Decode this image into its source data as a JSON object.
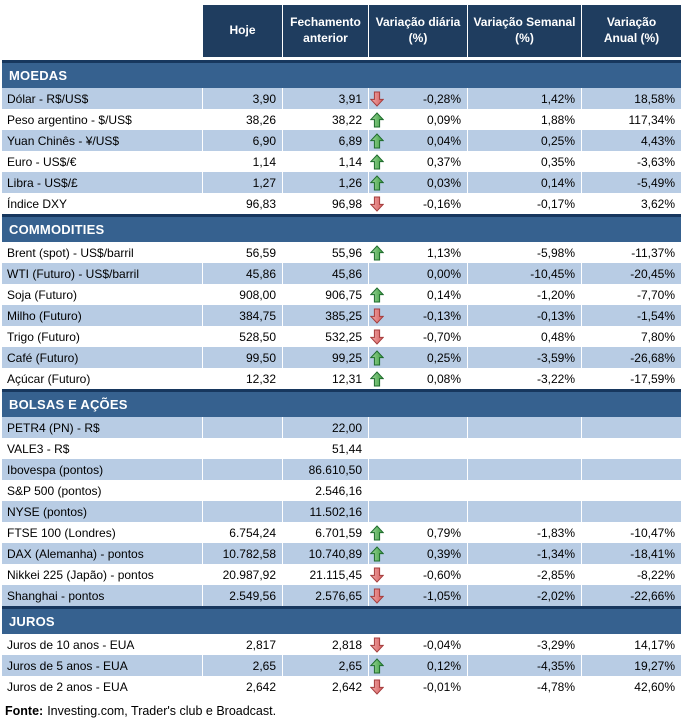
{
  "colors": {
    "header_bg": "#1F3D5F",
    "section_bg": "#36618F",
    "section_border": "#17375E",
    "stripe": "#B8CCE4",
    "arrow_up": "#46A546",
    "arrow_down": "#D45B5B"
  },
  "chart_data": {
    "type": "table",
    "columns": [
      "Hoje",
      "Fechamento\nanterior",
      "Variação diária\n(%)",
      "Variação Semanal\n(%)",
      "Variação\nAnual (%)"
    ],
    "sections": [
      {
        "title": "MOEDAS",
        "rows": [
          {
            "label": "Dólar - R$/US$",
            "today": "3,90",
            "previous": "3,91",
            "arrow": "down",
            "daily": "-0,28%",
            "weekly": "1,42%",
            "annual": "18,58%"
          },
          {
            "label": "Peso argentino - $/US$",
            "today": "38,26",
            "previous": "38,22",
            "arrow": "up",
            "daily": "0,09%",
            "weekly": "1,88%",
            "annual": "117,34%"
          },
          {
            "label": "Yuan Chinês - ¥/US$",
            "today": "6,90",
            "previous": "6,89",
            "arrow": "up",
            "daily": "0,04%",
            "weekly": "0,25%",
            "annual": "4,43%"
          },
          {
            "label": "Euro - US$/€",
            "today": "1,14",
            "previous": "1,14",
            "arrow": "up",
            "daily": "0,37%",
            "weekly": "0,35%",
            "annual": "-3,63%"
          },
          {
            "label": "Libra - US$/£",
            "today": "1,27",
            "previous": "1,26",
            "arrow": "up",
            "daily": "0,03%",
            "weekly": "0,14%",
            "annual": "-5,49%"
          },
          {
            "label": "Índice DXY",
            "today": "96,83",
            "previous": "96,98",
            "arrow": "down",
            "daily": "-0,16%",
            "weekly": "-0,17%",
            "annual": "3,62%"
          }
        ]
      },
      {
        "title": "COMMODITIES",
        "rows": [
          {
            "label": "Brent (spot) - US$/barril",
            "today": "56,59",
            "previous": "55,96",
            "arrow": "up",
            "daily": "1,13%",
            "weekly": "-5,98%",
            "annual": "-11,37%"
          },
          {
            "label": "WTI (Futuro) - US$/barril",
            "today": "45,86",
            "previous": "45,86",
            "arrow": "",
            "daily": "0,00%",
            "weekly": "-10,45%",
            "annual": "-20,45%"
          },
          {
            "label": "Soja (Futuro)",
            "today": "908,00",
            "previous": "906,75",
            "arrow": "up",
            "daily": "0,14%",
            "weekly": "-1,20%",
            "annual": "-7,70%"
          },
          {
            "label": "Milho (Futuro)",
            "today": "384,75",
            "previous": "385,25",
            "arrow": "down",
            "daily": "-0,13%",
            "weekly": "-0,13%",
            "annual": "-1,54%"
          },
          {
            "label": "Trigo (Futuro)",
            "today": "528,50",
            "previous": "532,25",
            "arrow": "down",
            "daily": "-0,70%",
            "weekly": "0,48%",
            "annual": "7,80%"
          },
          {
            "label": "Café (Futuro)",
            "today": "99,50",
            "previous": "99,25",
            "arrow": "up",
            "daily": "0,25%",
            "weekly": "-3,59%",
            "annual": "-26,68%"
          },
          {
            "label": "Açúcar (Futuro)",
            "today": "12,32",
            "previous": "12,31",
            "arrow": "up",
            "daily": "0,08%",
            "weekly": "-3,22%",
            "annual": "-17,59%"
          }
        ]
      },
      {
        "title": "BOLSAS E AÇÕES",
        "rows": [
          {
            "label": "PETR4 (PN) - R$",
            "today": "",
            "previous": "22,00",
            "arrow": "",
            "daily": "",
            "weekly": "",
            "annual": ""
          },
          {
            "label": "VALE3 - R$",
            "today": "",
            "previous": "51,44",
            "arrow": "",
            "daily": "",
            "weekly": "",
            "annual": ""
          },
          {
            "label": "Ibovespa (pontos)",
            "today": "",
            "previous": "86.610,50",
            "arrow": "",
            "daily": "",
            "weekly": "",
            "annual": ""
          },
          {
            "label": "S&P 500 (pontos)",
            "today": "",
            "previous": "2.546,16",
            "arrow": "",
            "daily": "",
            "weekly": "",
            "annual": ""
          },
          {
            "label": "NYSE (pontos)",
            "today": "",
            "previous": "11.502,16",
            "arrow": "",
            "daily": "",
            "weekly": "",
            "annual": ""
          },
          {
            "label": "FTSE 100 (Londres)",
            "today": "6.754,24",
            "previous": "6.701,59",
            "arrow": "up",
            "daily": "0,79%",
            "weekly": "-1,83%",
            "annual": "-10,47%"
          },
          {
            "label": "DAX (Alemanha) - pontos",
            "today": "10.782,58",
            "previous": "10.740,89",
            "arrow": "up",
            "daily": "0,39%",
            "weekly": "-1,34%",
            "annual": "-18,41%"
          },
          {
            "label": "Nikkei 225 (Japão) - pontos",
            "today": "20.987,92",
            "previous": "21.115,45",
            "arrow": "down",
            "daily": "-0,60%",
            "weekly": "-2,85%",
            "annual": "-8,22%"
          },
          {
            "label": "Shanghai - pontos",
            "today": "2.549,56",
            "previous": "2.576,65",
            "arrow": "down",
            "daily": "-1,05%",
            "weekly": "-2,02%",
            "annual": "-22,66%"
          }
        ]
      },
      {
        "title": "JUROS",
        "rows": [
          {
            "label": "Juros de 10 anos - EUA",
            "today": "2,817",
            "previous": "2,818",
            "arrow": "down",
            "daily": "-0,04%",
            "weekly": "-3,29%",
            "annual": "14,17%"
          },
          {
            "label": "Juros de 5 anos - EUA",
            "today": "2,65",
            "previous": "2,65",
            "arrow": "up",
            "daily": "0,12%",
            "weekly": "-4,35%",
            "annual": "19,27%"
          },
          {
            "label": "Juros de 2 anos - EUA",
            "today": "2,642",
            "previous": "2,642",
            "arrow": "down",
            "daily": "-0,01%",
            "weekly": "-4,78%",
            "annual": "42,60%"
          }
        ]
      }
    ],
    "footer": {
      "prefix": "Fonte:",
      "text": "Investing.com, Trader's club e Broadcast."
    }
  }
}
